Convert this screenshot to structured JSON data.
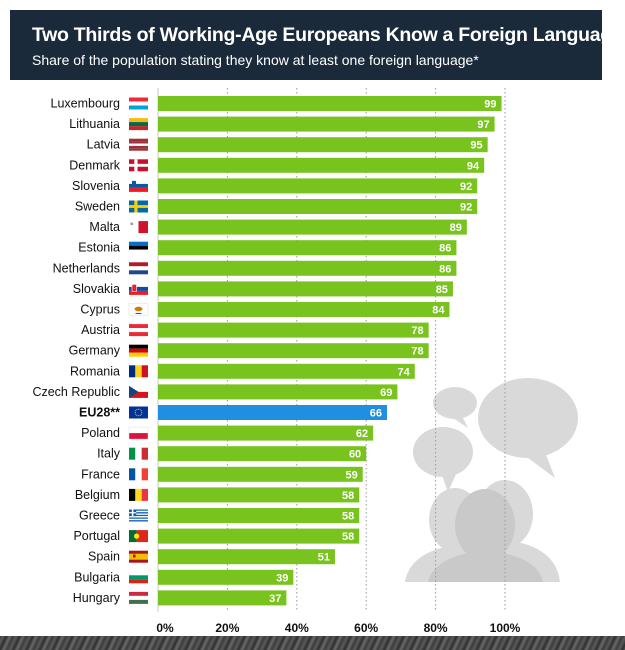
{
  "header": {
    "title": "Two Thirds of Working-Age Europeans Know a Foreign Language",
    "subtitle": "Share of the population stating they know at least one foreign language*"
  },
  "colors": {
    "header_bg": "#1b2a3a",
    "bar": "#78c31e",
    "highlight_bar": "#1f8fe0",
    "illustration": "#d9d9d9"
  },
  "illustration": {
    "icon": "people-speech-bubbles-icon"
  },
  "chart_data": {
    "type": "bar",
    "orientation": "horizontal",
    "title": "Two Thirds of Working-Age Europeans Know a Foreign Language",
    "subtitle": "Share of the population stating they know at least one foreign language*",
    "xlabel": "",
    "ylabel": "",
    "xlim": [
      0,
      100
    ],
    "x_ticks": [
      "0%",
      "20%",
      "40%",
      "60%",
      "80%",
      "100%"
    ],
    "x_tick_values": [
      0,
      20,
      40,
      60,
      80,
      100
    ],
    "grid": true,
    "highlight_category": "EU28**",
    "categories": [
      "Luxembourg",
      "Lithuania",
      "Latvia",
      "Denmark",
      "Slovenia",
      "Sweden",
      "Malta",
      "Estonia",
      "Netherlands",
      "Slovakia",
      "Cyprus",
      "Austria",
      "Germany",
      "Romania",
      "Czech Republic",
      "EU28**",
      "Poland",
      "Italy",
      "France",
      "Belgium",
      "Greece",
      "Portugal",
      "Spain",
      "Bulgaria",
      "Hungary"
    ],
    "values": [
      99,
      97,
      95,
      94,
      92,
      92,
      89,
      86,
      86,
      85,
      84,
      78,
      78,
      74,
      69,
      66,
      62,
      60,
      59,
      58,
      58,
      58,
      51,
      39,
      37
    ],
    "flags": [
      "luxembourg-flag-icon",
      "lithuania-flag-icon",
      "latvia-flag-icon",
      "denmark-flag-icon",
      "slovenia-flag-icon",
      "sweden-flag-icon",
      "malta-flag-icon",
      "estonia-flag-icon",
      "netherlands-flag-icon",
      "slovakia-flag-icon",
      "cyprus-flag-icon",
      "austria-flag-icon",
      "germany-flag-icon",
      "romania-flag-icon",
      "czech-flag-icon",
      "eu-flag-icon",
      "poland-flag-icon",
      "italy-flag-icon",
      "france-flag-icon",
      "belgium-flag-icon",
      "greece-flag-icon",
      "portugal-flag-icon",
      "spain-flag-icon",
      "bulgaria-flag-icon",
      "hungary-flag-icon"
    ]
  }
}
